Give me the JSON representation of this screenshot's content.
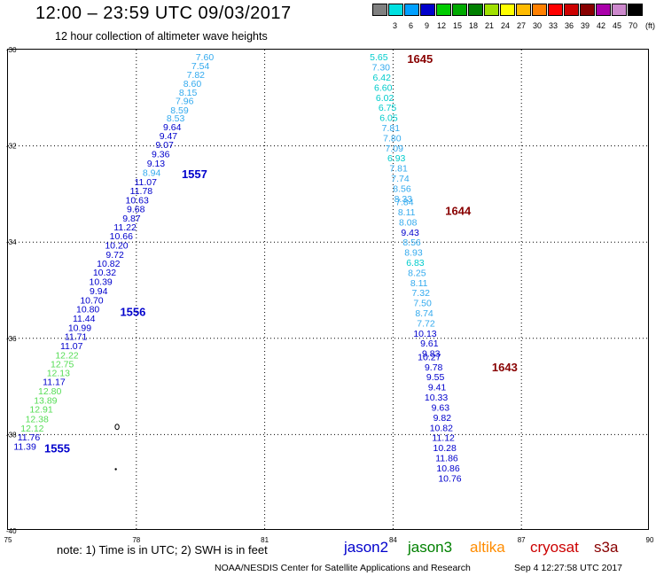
{
  "header": {
    "title": "12:00 – 23:59 UTC 09/03/2017",
    "subtitle": "12 hour collection of altimeter wave heights"
  },
  "legend": {
    "unit": "(ft)",
    "bins": [
      {
        "color": "#808080",
        "label": ""
      },
      {
        "color": "#00e0e0",
        "label": "3"
      },
      {
        "color": "#00a0ff",
        "label": "6"
      },
      {
        "color": "#0000cc",
        "label": "9"
      },
      {
        "color": "#00cc00",
        "label": "12"
      },
      {
        "color": "#00aa00",
        "label": "15"
      },
      {
        "color": "#008000",
        "label": "18"
      },
      {
        "color": "#a0e000",
        "label": "21"
      },
      {
        "color": "#ffff00",
        "label": "24"
      },
      {
        "color": "#ffbb00",
        "label": "27"
      },
      {
        "color": "#ff8000",
        "label": "30"
      },
      {
        "color": "#ff0000",
        "label": "33"
      },
      {
        "color": "#cc0000",
        "label": "36"
      },
      {
        "color": "#880000",
        "label": "39"
      },
      {
        "color": "#aa00aa",
        "label": "42"
      },
      {
        "color": "#cc88cc",
        "label": "45"
      },
      {
        "color": "#000000",
        "label": "70"
      }
    ]
  },
  "map": {
    "lon_range": [
      75,
      90
    ],
    "lat_range": [
      -40,
      -30
    ],
    "lon_ticks": [
      "75",
      "78",
      "81",
      "84",
      "87",
      "90"
    ],
    "lat_ticks": [
      "-30",
      "-32",
      "-34",
      "-36",
      "-38",
      "-40"
    ],
    "grid": "dotted"
  },
  "tracks": [
    {
      "name": "west-track",
      "points": [
        {
          "lon": 79.81,
          "lat": -30.15,
          "v": "7.60",
          "c": "#33aaee"
        },
        {
          "lon": 79.71,
          "lat": -30.33,
          "v": "7.54",
          "c": "#33aaee"
        },
        {
          "lon": 79.6,
          "lat": -30.52,
          "v": "7.82",
          "c": "#33aaee"
        },
        {
          "lon": 79.52,
          "lat": -30.7,
          "v": "8.60",
          "c": "#33aaee"
        },
        {
          "lon": 79.42,
          "lat": -30.88,
          "v": "8.15",
          "c": "#33aaee"
        },
        {
          "lon": 79.34,
          "lat": -31.06,
          "v": "7.96",
          "c": "#33aaee"
        },
        {
          "lon": 79.22,
          "lat": -31.25,
          "v": "8.59",
          "c": "#33aaee"
        },
        {
          "lon": 79.13,
          "lat": -31.42,
          "v": "8.53",
          "c": "#33aaee"
        },
        {
          "lon": 79.05,
          "lat": -31.6,
          "v": "9.64",
          "c": "#0000cc"
        },
        {
          "lon": 78.96,
          "lat": -31.79,
          "v": "9.47",
          "c": "#0000cc"
        },
        {
          "lon": 78.87,
          "lat": -31.97,
          "v": "9.07",
          "c": "#0000cc"
        },
        {
          "lon": 78.78,
          "lat": -32.16,
          "v": "9.36",
          "c": "#0000cc"
        },
        {
          "lon": 78.67,
          "lat": -32.36,
          "v": "9.13",
          "c": "#0000cc"
        },
        {
          "lon": 78.57,
          "lat": -32.55,
          "v": "8.94",
          "c": "#33aaee"
        },
        {
          "lon": 78.48,
          "lat": -32.74,
          "v": "11.07",
          "c": "#0000cc"
        },
        {
          "lon": 78.38,
          "lat": -32.93,
          "v": "11.78",
          "c": "#0000cc"
        },
        {
          "lon": 78.29,
          "lat": -33.12,
          "v": "10.63",
          "c": "#0000cc"
        },
        {
          "lon": 78.2,
          "lat": -33.31,
          "v": "9.68",
          "c": "#0000cc"
        },
        {
          "lon": 78.1,
          "lat": -33.5,
          "v": "9.87",
          "c": "#0000cc"
        },
        {
          "lon": 78.0,
          "lat": -33.68,
          "v": "11.22",
          "c": "#0000cc"
        },
        {
          "lon": 77.92,
          "lat": -33.87,
          "v": "10.66",
          "c": "#0000cc"
        },
        {
          "lon": 77.81,
          "lat": -34.06,
          "v": "10.20",
          "c": "#0000cc"
        },
        {
          "lon": 77.71,
          "lat": -34.25,
          "v": "9.72",
          "c": "#0000cc"
        },
        {
          "lon": 77.62,
          "lat": -34.44,
          "v": "10.82",
          "c": "#0000cc"
        },
        {
          "lon": 77.53,
          "lat": -34.62,
          "v": "10.32",
          "c": "#0000cc"
        },
        {
          "lon": 77.44,
          "lat": -34.82,
          "v": "10.39",
          "c": "#0000cc"
        },
        {
          "lon": 77.33,
          "lat": -35.01,
          "v": "9.94",
          "c": "#0000cc"
        },
        {
          "lon": 77.23,
          "lat": -35.2,
          "v": "10.70",
          "c": "#0000cc"
        },
        {
          "lon": 77.14,
          "lat": -35.39,
          "v": "10.80",
          "c": "#0000cc"
        },
        {
          "lon": 77.04,
          "lat": -35.58,
          "v": "11.44",
          "c": "#0000cc"
        },
        {
          "lon": 76.95,
          "lat": -35.77,
          "v": "10.99",
          "c": "#0000cc"
        },
        {
          "lon": 76.85,
          "lat": -35.96,
          "v": "11.71",
          "c": "#0000cc"
        },
        {
          "lon": 76.75,
          "lat": -36.15,
          "v": "11.07",
          "c": "#0000cc"
        },
        {
          "lon": 76.65,
          "lat": -36.34,
          "v": "12.22",
          "c": "#55dd55"
        },
        {
          "lon": 76.54,
          "lat": -36.53,
          "v": "12.75",
          "c": "#55dd55"
        },
        {
          "lon": 76.45,
          "lat": -36.71,
          "v": "12.13",
          "c": "#55dd55"
        },
        {
          "lon": 76.34,
          "lat": -36.9,
          "v": "11.17",
          "c": "#0000cc"
        },
        {
          "lon": 76.25,
          "lat": -37.09,
          "v": "12.80",
          "c": "#55dd55"
        },
        {
          "lon": 76.15,
          "lat": -37.28,
          "v": "13.89",
          "c": "#55dd55"
        },
        {
          "lon": 76.05,
          "lat": -37.47,
          "v": "12.91",
          "c": "#55dd55"
        },
        {
          "lon": 75.95,
          "lat": -37.67,
          "v": "12.38",
          "c": "#55dd55"
        },
        {
          "lon": 75.84,
          "lat": -37.86,
          "v": "12.12",
          "c": "#55dd55"
        },
        {
          "lon": 75.75,
          "lat": -38.05,
          "v": "11.76",
          "c": "#0000cc"
        },
        {
          "lon": 75.66,
          "lat": -38.24,
          "v": "11.39",
          "c": "#0000cc"
        }
      ],
      "time_labels": [
        {
          "lon": 79.06,
          "lat": -32.58,
          "text": "1557",
          "c": "#0000cc"
        },
        {
          "lon": 77.62,
          "lat": -35.44,
          "text": "1556",
          "c": "#0000cc"
        },
        {
          "lon": 75.85,
          "lat": -38.28,
          "text": "1555",
          "c": "#0000cc"
        }
      ]
    },
    {
      "name": "east-track",
      "points": [
        {
          "lon": 83.88,
          "lat": -30.15,
          "v": "5.65",
          "c": "#00cccc"
        },
        {
          "lon": 83.93,
          "lat": -30.36,
          "v": "7.30",
          "c": "#33aaee"
        },
        {
          "lon": 83.95,
          "lat": -30.57,
          "v": "6.42",
          "c": "#00cccc"
        },
        {
          "lon": 83.98,
          "lat": -30.78,
          "v": "6.60",
          "c": "#00cccc"
        },
        {
          "lon": 84.02,
          "lat": -30.99,
          "v": "6.02",
          "c": "#00cccc"
        },
        {
          "lon": 84.08,
          "lat": -31.2,
          "v": "6.75",
          "c": "#00cccc"
        },
        {
          "lon": 84.11,
          "lat": -31.41,
          "v": "6.05",
          "c": "#00cccc"
        },
        {
          "lon": 84.16,
          "lat": -31.62,
          "v": "7.81",
          "c": "#33aaee"
        },
        {
          "lon": 84.19,
          "lat": -31.83,
          "v": "7.80",
          "c": "#33aaee"
        },
        {
          "lon": 84.24,
          "lat": -32.04,
          "v": "7.09",
          "c": "#33aaee"
        },
        {
          "lon": 84.29,
          "lat": -32.25,
          "v": "6.93",
          "c": "#00cccc"
        },
        {
          "lon": 84.34,
          "lat": -32.46,
          "v": "7.81",
          "c": "#33aaee"
        },
        {
          "lon": 84.38,
          "lat": -32.67,
          "v": "7.74",
          "c": "#33aaee"
        },
        {
          "lon": 84.42,
          "lat": -32.88,
          "v": "8.56",
          "c": "#33aaee"
        },
        {
          "lon": 84.45,
          "lat": -33.09,
          "v": "8.33",
          "c": "#33aaee"
        },
        {
          "lon": 84.48,
          "lat": -33.16,
          "v": "7.84",
          "c": "#33aaee"
        },
        {
          "lon": 84.52,
          "lat": -33.37,
          "v": "8.11",
          "c": "#33aaee"
        },
        {
          "lon": 84.56,
          "lat": -33.58,
          "v": "8.08",
          "c": "#33aaee"
        },
        {
          "lon": 84.61,
          "lat": -33.79,
          "v": "9.43",
          "c": "#0000cc"
        },
        {
          "lon": 84.65,
          "lat": -34.0,
          "v": "8.56",
          "c": "#33aaee"
        },
        {
          "lon": 84.69,
          "lat": -34.21,
          "v": "8.93",
          "c": "#33aaee"
        },
        {
          "lon": 84.73,
          "lat": -34.42,
          "v": "6.83",
          "c": "#00cccc"
        },
        {
          "lon": 84.77,
          "lat": -34.63,
          "v": "8.25",
          "c": "#33aaee"
        },
        {
          "lon": 84.81,
          "lat": -34.84,
          "v": "8.11",
          "c": "#33aaee"
        },
        {
          "lon": 84.86,
          "lat": -35.05,
          "v": "7.32",
          "c": "#33aaee"
        },
        {
          "lon": 84.9,
          "lat": -35.26,
          "v": "7.50",
          "c": "#33aaee"
        },
        {
          "lon": 84.94,
          "lat": -35.47,
          "v": "8.74",
          "c": "#33aaee"
        },
        {
          "lon": 84.98,
          "lat": -35.68,
          "v": "7.72",
          "c": "#33aaee"
        },
        {
          "lon": 85.02,
          "lat": -35.89,
          "v": "10.13",
          "c": "#0000cc"
        },
        {
          "lon": 85.06,
          "lat": -36.1,
          "v": "9.61",
          "c": "#0000cc"
        },
        {
          "lon": 85.1,
          "lat": -36.31,
          "v": "9.83",
          "c": "#0000cc"
        },
        {
          "lon": 85.12,
          "lat": -36.38,
          "v": "10.27",
          "c": "#0000cc"
        },
        {
          "lon": 85.16,
          "lat": -36.59,
          "v": "9.78",
          "c": "#0000cc"
        },
        {
          "lon": 85.2,
          "lat": -36.8,
          "v": "9.55",
          "c": "#0000cc"
        },
        {
          "lon": 85.24,
          "lat": -37.01,
          "v": "9.41",
          "c": "#0000cc"
        },
        {
          "lon": 85.28,
          "lat": -37.22,
          "v": "10.33",
          "c": "#0000cc"
        },
        {
          "lon": 85.32,
          "lat": -37.43,
          "v": "9.63",
          "c": "#0000cc"
        },
        {
          "lon": 85.36,
          "lat": -37.64,
          "v": "9.82",
          "c": "#0000cc"
        },
        {
          "lon": 85.4,
          "lat": -37.85,
          "v": "10.82",
          "c": "#0000cc"
        },
        {
          "lon": 85.44,
          "lat": -38.06,
          "v": "11.12",
          "c": "#0000cc"
        },
        {
          "lon": 85.48,
          "lat": -38.27,
          "v": "10.28",
          "c": "#0000cc"
        },
        {
          "lon": 85.52,
          "lat": -38.48,
          "v": "11.86",
          "c": "#0000cc"
        },
        {
          "lon": 85.56,
          "lat": -38.69,
          "v": "10.86",
          "c": "#0000cc"
        },
        {
          "lon": 85.6,
          "lat": -38.9,
          "v": "10.76",
          "c": "#0000cc"
        }
      ],
      "time_labels": [
        {
          "lon": 84.33,
          "lat": -30.18,
          "text": "1645",
          "c": "#880000"
        },
        {
          "lon": 85.22,
          "lat": -33.34,
          "text": "1644",
          "c": "#880000"
        },
        {
          "lon": 86.31,
          "lat": -36.59,
          "text": "1643",
          "c": "#880000"
        }
      ]
    }
  ],
  "islands": [
    {
      "lon": 77.55,
      "lat": -37.84,
      "kind": "ring"
    },
    {
      "lon": 77.52,
      "lat": -38.72,
      "kind": "dot"
    }
  ],
  "footer": {
    "note": "note:  1) Time is in UTC;  2) SWH is in feet",
    "satellites": [
      {
        "name": "jason2",
        "color": "#0000cc"
      },
      {
        "name": "jason3",
        "color": "#008000"
      },
      {
        "name": "altika",
        "color": "#ff8c00"
      },
      {
        "name": "cryosat",
        "color": "#cc0000"
      },
      {
        "name": "s3a",
        "color": "#880000"
      }
    ],
    "credit": "NOAA/NESDIS Center for Satellite Applications and Research",
    "timestamp": "Sep  4 12:27:58 UTC 2017"
  }
}
